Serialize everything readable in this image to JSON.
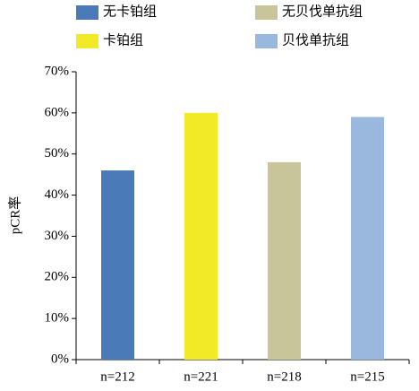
{
  "chart_data": {
    "type": "bar",
    "ylabel": "pCR率",
    "categories": [
      "n=212",
      "n=221",
      "n=218",
      "n=215"
    ],
    "values": [
      46,
      60,
      48,
      59
    ],
    "colors": [
      "#4a7ab8",
      "#f2ea27",
      "#c9c59b",
      "#9ab8de"
    ],
    "legend": [
      "无卡铂组",
      "卡铂组",
      "无贝伐单抗组",
      "贝伐单抗组"
    ],
    "ylim": [
      0,
      70
    ],
    "yticks": [
      {
        "value": 0,
        "label": "0%"
      },
      {
        "value": 10,
        "label": "10%"
      },
      {
        "value": 20,
        "label": "20%"
      },
      {
        "value": 30,
        "label": "30%"
      },
      {
        "value": 40,
        "label": "40%"
      },
      {
        "value": 50,
        "label": "50%"
      },
      {
        "value": 60,
        "label": "60%"
      },
      {
        "value": 70,
        "label": "70%"
      }
    ],
    "grid": false
  }
}
